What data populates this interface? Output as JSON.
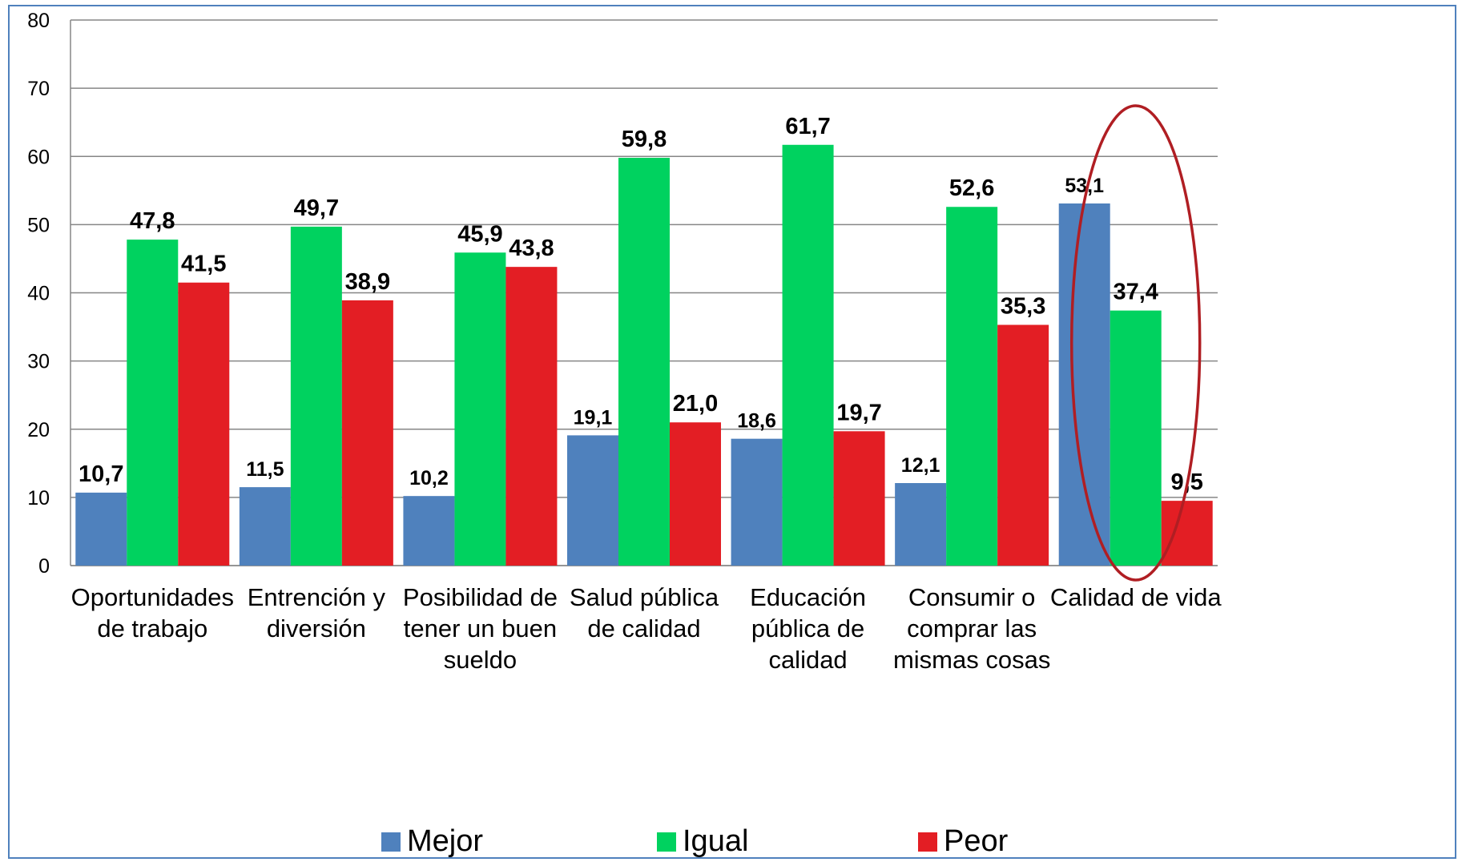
{
  "chart_data": {
    "type": "bar",
    "title": "",
    "xlabel": "",
    "ylabel": "",
    "ylim": [
      0,
      80
    ],
    "yticks": [
      "0",
      "10",
      "20",
      "30",
      "40",
      "50",
      "60",
      "70",
      "80"
    ],
    "grid": true,
    "legend_position": "bottom",
    "categories": [
      [
        "Oportunidades",
        "de trabajo"
      ],
      [
        "Entrención y",
        "diversión"
      ],
      [
        "Posibilidad de",
        "tener un buen",
        "sueldo"
      ],
      [
        "Salud pública",
        "de calidad"
      ],
      [
        "Educación",
        "pública de",
        "calidad"
      ],
      [
        "Consumir o",
        "comprar las",
        "mismas cosas"
      ],
      [
        "Calidad de vida"
      ]
    ],
    "series": [
      {
        "name": "Mejor",
        "color": "#4F81BD",
        "values": [
          10.7,
          11.5,
          10.2,
          19.1,
          18.6,
          12.1,
          53.1
        ],
        "labels": [
          "10,7",
          "11,5",
          "10,2",
          "19,1",
          "18,6",
          "12,1",
          "53,1"
        ]
      },
      {
        "name": "Igual",
        "color": "#00D25F",
        "values": [
          47.8,
          49.7,
          45.9,
          59.8,
          61.7,
          52.6,
          37.4
        ],
        "labels": [
          "47,8",
          "49,7",
          "45,9",
          "59,8",
          "61,7",
          "52,6",
          "37,4"
        ]
      },
      {
        "name": "Peor",
        "color": "#E31E24",
        "values": [
          41.5,
          38.9,
          43.8,
          21.0,
          19.7,
          35.3,
          9.5
        ],
        "labels": [
          "41,5",
          "38,9",
          "43,8",
          "21,0",
          "19,7",
          "35,3",
          "9,5"
        ]
      }
    ],
    "highlight": {
      "category_index": 6,
      "shape": "ellipse",
      "color": "#B01E23"
    }
  }
}
